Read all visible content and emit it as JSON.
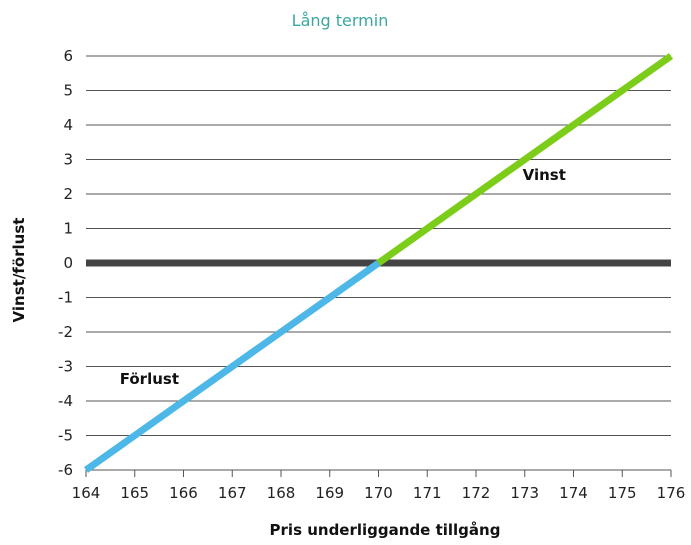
{
  "chart_data": {
    "type": "line",
    "title": "Lång termin",
    "xlabel": "Pris underliggande tillgång",
    "ylabel": "Vinst/förlust",
    "xlim": [
      164,
      176
    ],
    "ylim": [
      -6,
      6
    ],
    "x_ticks": [
      164,
      165,
      166,
      167,
      168,
      169,
      170,
      171,
      172,
      173,
      174,
      175,
      176
    ],
    "y_ticks": [
      6,
      5,
      4,
      3,
      2,
      1,
      0,
      -1,
      -2,
      -3,
      -4,
      -5,
      -6
    ],
    "grid": "horizontal",
    "series": [
      {
        "color": "#4db8e8",
        "x": [
          164,
          170
        ],
        "y": [
          -6,
          0
        ]
      },
      {
        "color": "#7ccd1a",
        "x": [
          170,
          176
        ],
        "y": [
          0,
          6
        ]
      }
    ],
    "zero_line_color": "#444444",
    "annotations": [
      {
        "text": "Vinst",
        "x": 173.4,
        "y": 2.4
      },
      {
        "text": "Förlust",
        "x": 165.3,
        "y": -3.5
      }
    ]
  }
}
